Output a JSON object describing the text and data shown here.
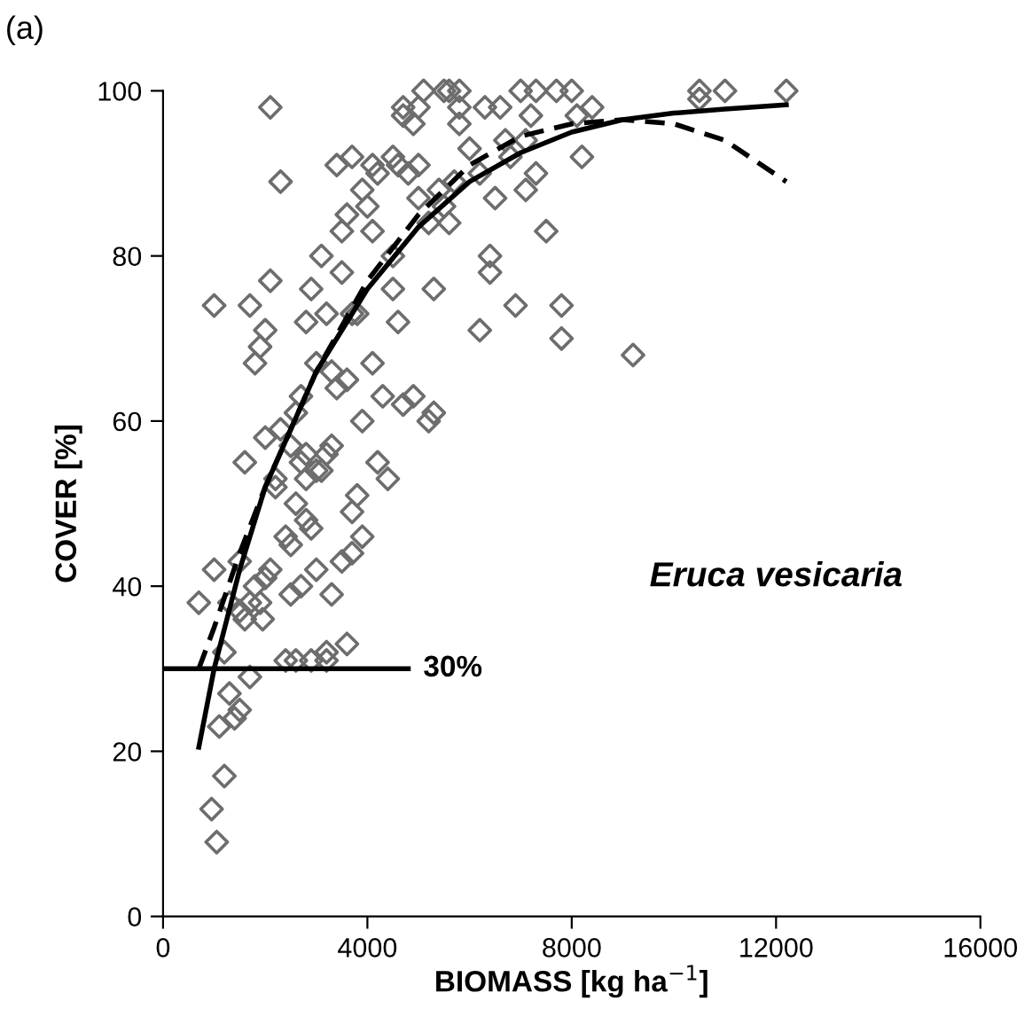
{
  "chart_data": {
    "type": "scatter",
    "xlabel": "BIOMASS [kg ha$^{−1}$]",
    "ylabel": "COVER [%]",
    "xlim": [
      0,
      16000
    ],
    "xticks": [
      0,
      4000,
      8000,
      12000,
      16000
    ],
    "ylim": [
      0,
      100
    ],
    "yticks": [
      0,
      20,
      40,
      60,
      80,
      100
    ],
    "grid": false,
    "legend": false,
    "annotations": [
      "(a)",
      "Eruca vesicaria",
      {
        "text": "30%",
        "x": 4900,
        "y": 30
      }
    ],
    "series": [
      {
        "marker": "diamond",
        "color": "#6d6d6d",
        "x": [
          1000,
          1000,
          700,
          950,
          1050,
          1200,
          1100,
          1300,
          1400,
          1500,
          1200,
          1300,
          1500,
          1700,
          1600,
          1800,
          1700,
          1900,
          2000,
          2100,
          2100,
          2300,
          2000,
          1800,
          1900,
          1950,
          2000,
          2100,
          2200,
          2300,
          2400,
          2500,
          2500,
          2600,
          2700,
          2800,
          2800,
          2900,
          2800,
          2900,
          3000,
          3100,
          3200,
          3100,
          3200,
          3300,
          3400,
          3400,
          3500,
          3500,
          3600,
          3700,
          3700,
          3800,
          3900,
          3900,
          4000,
          4100,
          4100,
          4200,
          4100,
          4300,
          4400,
          4200,
          3600,
          3700,
          3800,
          3900,
          3500,
          3700,
          3600,
          3300,
          3200,
          3000,
          2700,
          2600,
          2600,
          2900,
          3200,
          2400,
          2700,
          3000,
          3300,
          2200,
          2500,
          2800,
          1600,
          1700,
          1500,
          4500,
          4600,
          4700,
          4700,
          4800,
          4900,
          5000,
          4500,
          4500,
          4600,
          4700,
          4900,
          5000,
          5200,
          5300,
          5200,
          5300,
          5500,
          5400,
          5500,
          5600,
          5800,
          5800,
          5100,
          5000,
          5600,
          5700,
          6000,
          6200,
          6200,
          6300,
          6400,
          6400,
          6500,
          6600,
          6800,
          6900,
          7000,
          7200,
          7300,
          7100,
          7300,
          7100,
          7500,
          7700,
          7800,
          7800,
          8000,
          8100,
          8200,
          8400,
          9200,
          10500,
          10500,
          11000,
          12200,
          5800,
          6700
        ],
        "values": [
          74,
          42,
          38,
          13,
          9,
          17,
          23,
          27,
          24,
          25,
          32,
          38,
          37,
          29,
          55,
          67,
          74,
          69,
          71,
          77,
          98,
          89,
          58,
          40,
          38,
          36,
          41,
          42,
          53,
          59,
          46,
          45,
          39,
          61,
          63,
          56,
          72,
          76,
          53,
          47,
          67,
          80,
          73,
          54,
          31,
          57,
          64,
          91,
          83,
          78,
          85,
          92,
          73,
          73,
          60,
          88,
          86,
          91,
          83,
          90,
          67,
          63,
          53,
          55,
          65,
          49,
          51,
          46,
          43,
          44,
          33,
          66,
          56,
          54,
          55,
          50,
          31,
          31,
          32,
          31,
          40,
          42,
          39,
          52,
          57,
          48,
          36,
          38,
          43,
          92,
          91,
          97,
          98,
          90,
          96,
          98,
          80,
          76,
          72,
          62,
          63,
          87,
          84,
          61,
          60,
          76,
          86,
          88,
          100,
          100,
          100,
          96,
          100,
          91,
          84,
          89,
          93,
          90,
          71,
          98,
          80,
          78,
          87,
          98,
          92,
          74,
          100,
          97,
          100,
          94,
          90,
          88,
          83,
          100,
          70,
          74,
          100,
          97,
          92,
          98,
          68,
          100,
          99,
          100,
          100,
          98,
          94
        ]
      },
      {
        "type": "line",
        "marker": "none",
        "line_style": "solid",
        "color": "#000000",
        "x": [
          700,
          1000,
          1500,
          2000,
          3000,
          4000,
          5000,
          6000,
          7000,
          8000,
          9000,
          10000,
          11000,
          12200
        ],
        "values": [
          20.5,
          30,
          42,
          52,
          66,
          76,
          83.5,
          89,
          92.5,
          95,
          96.5,
          97.3,
          97.8,
          98.3
        ]
      },
      {
        "type": "line",
        "marker": "none",
        "line_style": "dashed",
        "color": "#000000",
        "x": [
          700,
          1000,
          1500,
          2000,
          3000,
          4000,
          5000,
          6000,
          7000,
          8000,
          9000,
          10000,
          11000,
          12200
        ],
        "values": [
          30,
          35,
          44,
          52,
          66,
          77,
          85,
          91,
          94.5,
          96,
          96.5,
          96,
          94,
          89
        ]
      },
      {
        "type": "line",
        "marker": "none",
        "line_style": "solid",
        "color": "#000000",
        "x": [
          0,
          4800
        ],
        "values": [
          30,
          30
        ]
      }
    ]
  }
}
